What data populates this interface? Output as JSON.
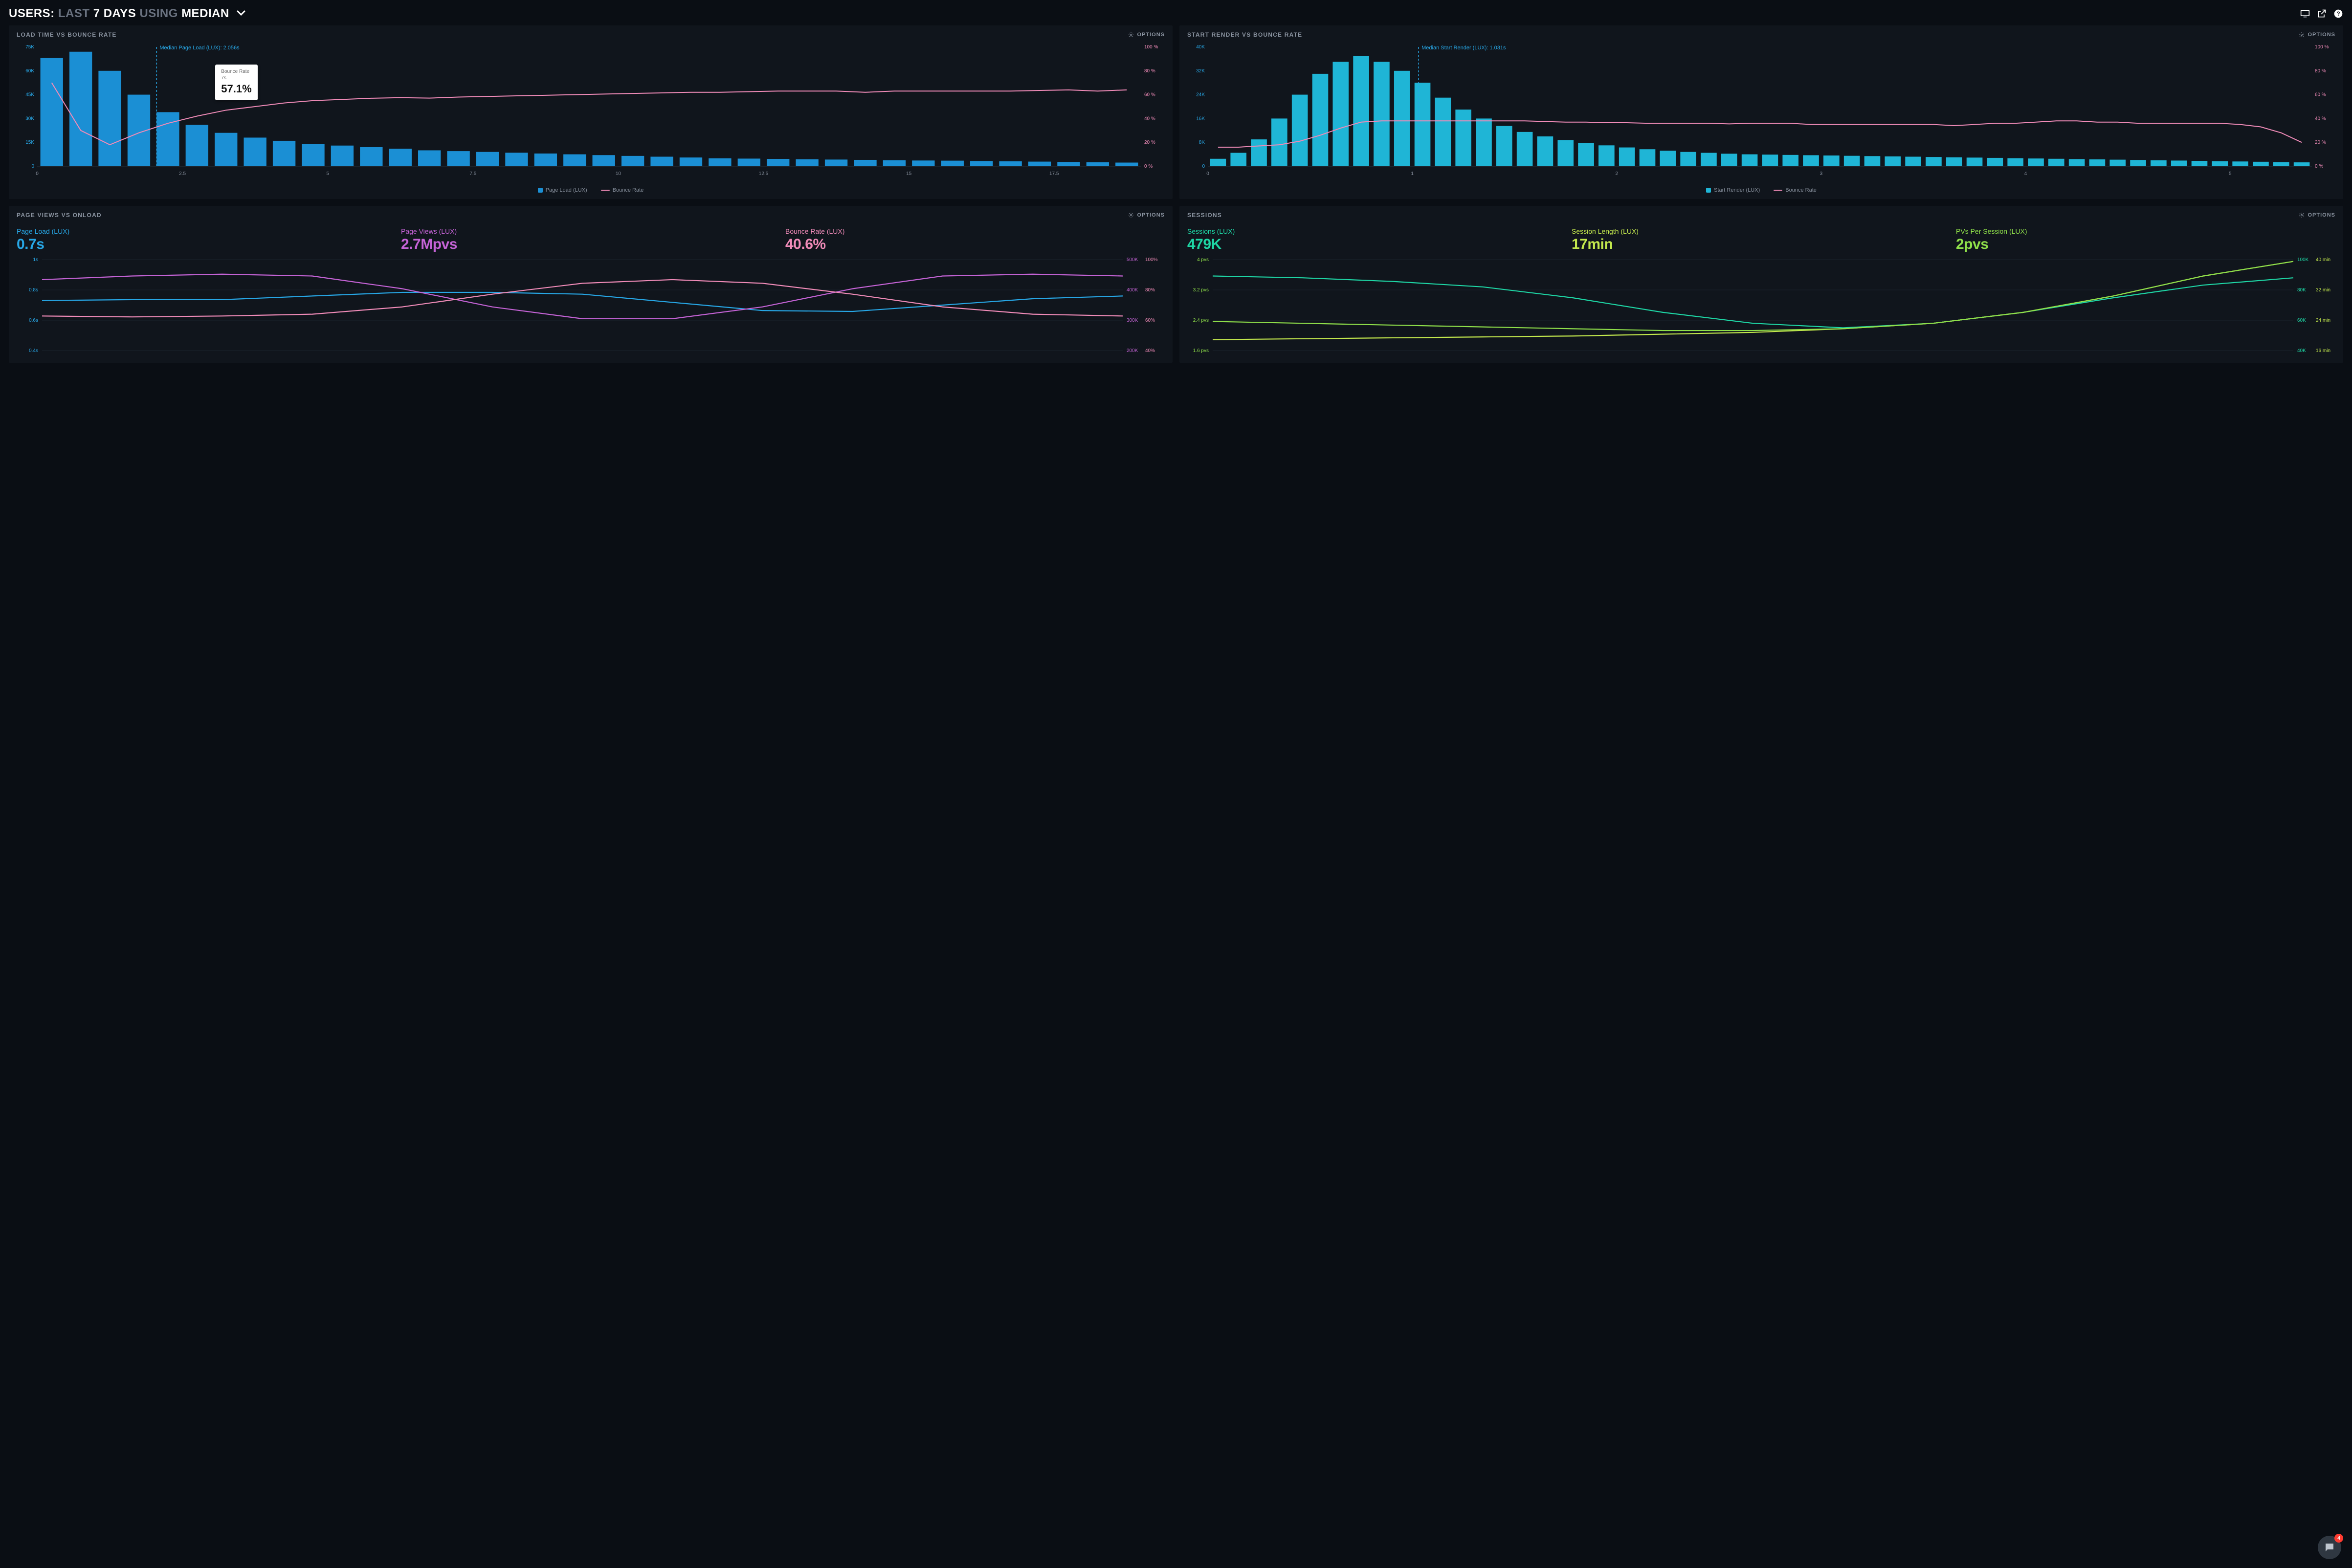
{
  "header": {
    "prefix": "USERS:",
    "span1_dim": "LAST",
    "span2_strong": "7 DAYS",
    "span3_dim": "USING",
    "span4_strong": "MEDIAN"
  },
  "panel_load": {
    "title": "LOAD TIME VS BOUNCE RATE",
    "options_label": "OPTIONS",
    "median_label": "Median Page Load (LUX): 2.056s",
    "median_x": 2.056,
    "tooltip": {
      "label1": "Bounce Rate",
      "label2": "7s",
      "value": "57.1%"
    },
    "chart": {
      "type": "bar+line",
      "x_range": [
        0,
        19
      ],
      "x_ticks": [
        0,
        2.5,
        5,
        7.5,
        10,
        12.5,
        15,
        17.5
      ],
      "y_left_range": [
        0,
        75000
      ],
      "y_left_ticks": [
        "0",
        "15K",
        "30K",
        "45K",
        "60K",
        "75K"
      ],
      "y_right_range": [
        0,
        100
      ],
      "y_right_ticks": [
        "0 %",
        "20 %",
        "40 %",
        "60 %",
        "80 %",
        "100 %"
      ],
      "bar_color": "#1b8fd4",
      "line_color": "#f08bb8",
      "median_line_color": "#27a7e6",
      "bar_values": [
        68000,
        72000,
        60000,
        45000,
        34000,
        26000,
        21000,
        18000,
        16000,
        14000,
        13000,
        12000,
        11000,
        10000,
        9500,
        9000,
        8500,
        8000,
        7500,
        7000,
        6500,
        6000,
        5500,
        5000,
        4800,
        4600,
        4400,
        4200,
        4000,
        3800,
        3600,
        3500,
        3300,
        3100,
        2900,
        2700,
        2500,
        2300
      ],
      "line_values": [
        70,
        30,
        18,
        28,
        36,
        42,
        47,
        50,
        53,
        55,
        56,
        57,
        57.5,
        57.1,
        58,
        58.5,
        59,
        59.5,
        60,
        60.5,
        61,
        61.5,
        62,
        62,
        62.5,
        63,
        63,
        63,
        62,
        63,
        63,
        63,
        63,
        63,
        63.5,
        64,
        63,
        64
      ]
    },
    "legend": {
      "bars": "Page Load (LUX)",
      "line": "Bounce Rate"
    }
  },
  "panel_start": {
    "title": "START RENDER VS BOUNCE RATE",
    "options_label": "OPTIONS",
    "median_label": "Median Start Render (LUX): 1.031s",
    "median_x": 1.031,
    "chart": {
      "type": "bar+line",
      "x_range": [
        0,
        5.4
      ],
      "x_ticks": [
        0,
        1,
        2,
        3,
        4,
        5
      ],
      "y_left_range": [
        0,
        40000
      ],
      "y_left_ticks": [
        "0",
        "8K",
        "16K",
        "24K",
        "32K",
        "40K"
      ],
      "y_right_range": [
        0,
        100
      ],
      "y_right_ticks": [
        "0 %",
        "20 %",
        "40 %",
        "60 %",
        "80 %",
        "100 %"
      ],
      "bar_color": "#1fb5d6",
      "line_color": "#f08bb8",
      "median_line_color": "#27a7e6",
      "bar_values": [
        2500,
        4500,
        9000,
        16000,
        24000,
        31000,
        35000,
        37000,
        35000,
        32000,
        28000,
        23000,
        19000,
        16000,
        13500,
        11500,
        10000,
        8800,
        7800,
        7000,
        6300,
        5700,
        5200,
        4800,
        4500,
        4200,
        4000,
        3900,
        3800,
        3700,
        3600,
        3500,
        3400,
        3300,
        3200,
        3100,
        3000,
        2900,
        2800,
        2700,
        2600,
        2500,
        2400,
        2300,
        2200,
        2100,
        2000,
        1900,
        1800,
        1700,
        1600,
        1500,
        1400,
        1300
      ],
      "line_values": [
        16,
        16,
        17,
        18,
        21,
        26,
        32,
        37,
        38,
        38,
        38,
        38,
        38,
        38,
        38,
        38,
        37.5,
        37,
        37,
        36.5,
        36.5,
        36,
        36,
        36,
        36,
        35.5,
        36,
        36,
        36,
        35,
        35,
        35,
        35,
        35,
        35,
        35,
        34,
        35,
        36,
        36,
        37,
        38,
        38,
        37,
        37,
        36,
        36,
        36,
        36,
        36,
        35,
        33,
        28,
        20
      ]
    },
    "legend": {
      "bars": "Start Render (LUX)",
      "line": "Bounce Rate"
    }
  },
  "panel_views": {
    "title": "PAGE VIEWS VS ONLOAD",
    "options_label": "OPTIONS",
    "metrics": [
      {
        "label": "Page Load (LUX)",
        "value": "0.7s",
        "color": "#27a7e6"
      },
      {
        "label": "Page Views (LUX)",
        "value": "2.7Mpvs",
        "color": "#c563d6"
      },
      {
        "label": "Bounce Rate (LUX)",
        "value": "40.6%",
        "color": "#f08bb8"
      }
    ],
    "chart": {
      "type": "multiline",
      "y_left_ticks": [
        "0.4s",
        "0.6s",
        "0.8s",
        "1s"
      ],
      "y_left_color": "#27a7e6",
      "y_right1_ticks": [
        "200K",
        "300K",
        "400K",
        "500K"
      ],
      "y_right1_color": "#c563d6",
      "y_right2_ticks": [
        "40%",
        "60%",
        "80%",
        "100%"
      ],
      "y_right2_color": "#f08bb8",
      "series": [
        {
          "color": "#27a7e6",
          "values": [
            0.55,
            0.56,
            0.56,
            0.6,
            0.64,
            0.64,
            0.62,
            0.53,
            0.44,
            0.43,
            0.5,
            0.57,
            0.6
          ]
        },
        {
          "color": "#c563d6",
          "values": [
            0.78,
            0.82,
            0.84,
            0.82,
            0.68,
            0.48,
            0.35,
            0.35,
            0.48,
            0.68,
            0.82,
            0.84,
            0.82
          ]
        },
        {
          "color": "#f08bb8",
          "values": [
            0.38,
            0.37,
            0.38,
            0.4,
            0.48,
            0.62,
            0.74,
            0.78,
            0.74,
            0.62,
            0.48,
            0.4,
            0.38
          ]
        }
      ]
    }
  },
  "panel_sessions": {
    "title": "SESSIONS",
    "options_label": "OPTIONS",
    "metrics": [
      {
        "label": "Sessions (LUX)",
        "value": "479K",
        "color": "#1ed6a5"
      },
      {
        "label": "Session Length (LUX)",
        "value": "17min",
        "color": "#c3e84d"
      },
      {
        "label": "PVs Per Session (LUX)",
        "value": "2pvs",
        "color": "#8fe04a"
      }
    ],
    "chart": {
      "type": "multiline",
      "y_left_ticks": [
        "1.6 pvs",
        "2.4 pvs",
        "3.2 pvs",
        "4 pvs"
      ],
      "y_left_color": "#8fe04a",
      "y_right1_ticks": [
        "40K",
        "60K",
        "80K",
        "100K"
      ],
      "y_right1_color": "#1ed6a5",
      "y_right2_ticks": [
        "16 min",
        "24 min",
        "32 min",
        "40 min"
      ],
      "y_right2_color": "#c3e84d",
      "series": [
        {
          "color": "#1ed6a5",
          "values": [
            0.82,
            0.8,
            0.76,
            0.7,
            0.58,
            0.42,
            0.3,
            0.25,
            0.3,
            0.42,
            0.58,
            0.72,
            0.8
          ]
        },
        {
          "color": "#c3e84d",
          "values": [
            0.12,
            0.13,
            0.14,
            0.15,
            0.16,
            0.18,
            0.2,
            0.24,
            0.3,
            0.42,
            0.6,
            0.82,
            0.98
          ]
        },
        {
          "color": "#8fe04a",
          "values": [
            0.32,
            0.3,
            0.28,
            0.26,
            0.24,
            0.22,
            0.22,
            0.24,
            0.3,
            0.42,
            0.6,
            0.82,
            0.98
          ]
        }
      ]
    }
  },
  "chat_badge": "4",
  "colors": {
    "bg": "#0a0e14",
    "panel_bg": "#10151c",
    "muted": "#8b94a1",
    "axis_right": "#f08bb8"
  }
}
